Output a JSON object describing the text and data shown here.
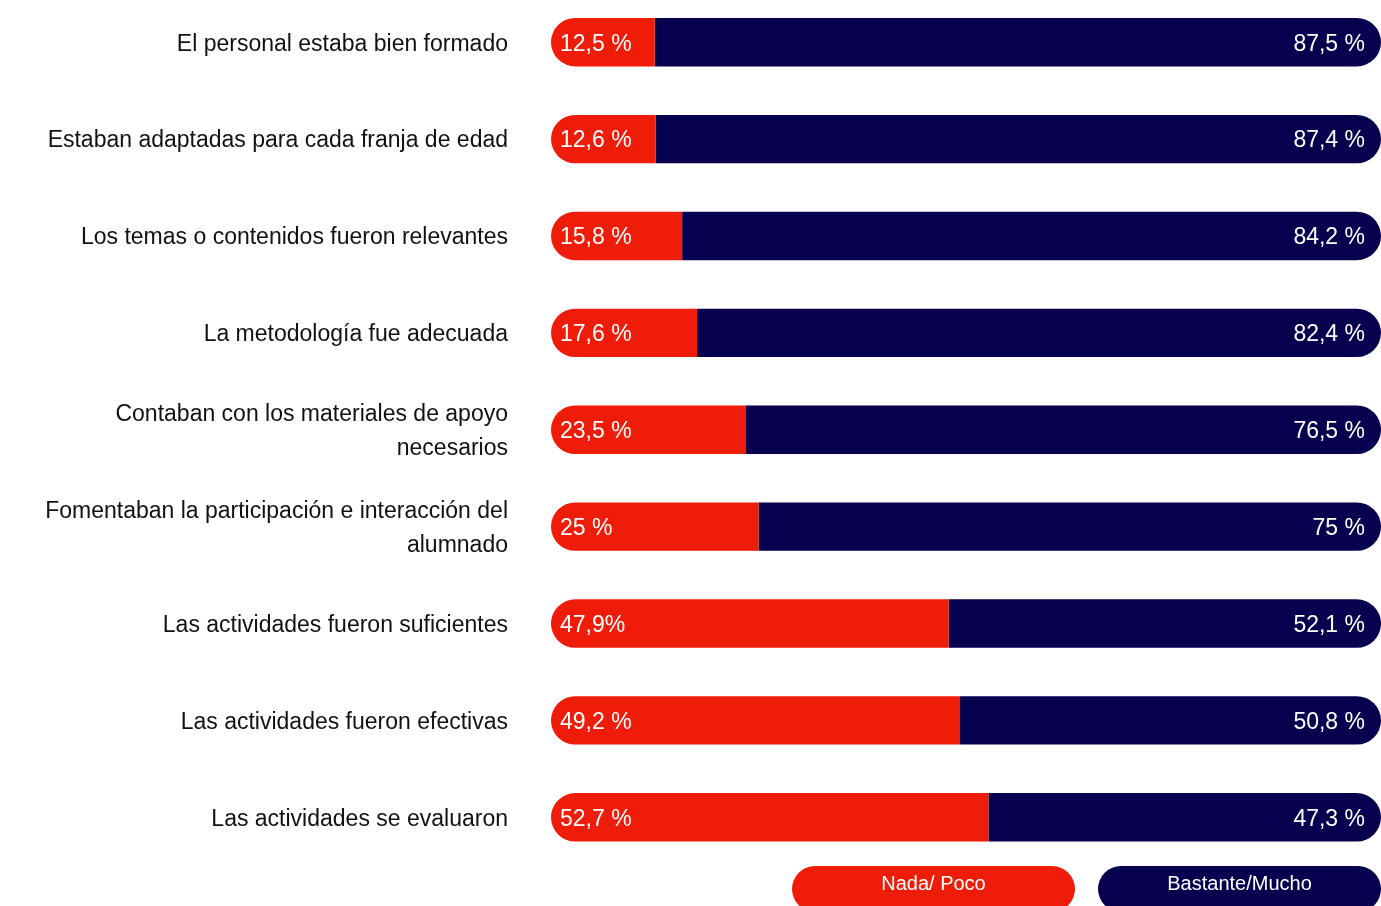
{
  "chart_data": {
    "type": "bar",
    "orientation": "horizontal",
    "stacked": true,
    "xlim": [
      0,
      100
    ],
    "tick_labels": false,
    "legend": "bottom",
    "categories": [
      "El personal estaba bien formado",
      "Estaban adaptadas para cada franja de edad",
      "Los temas o contenidos fueron relevantes",
      "La metodología fue adecuada",
      "Contaban con los materiales de apoyo necesarios",
      "Fomentaban la participación e interacción del alumnado",
      "Las actividades fueron suficientes",
      "Las actividades fueron efectivas",
      "Las actividades se evaluaron"
    ],
    "series": [
      {
        "name": "Nada/ Poco",
        "color": "#ee1c08",
        "values": [
          12.5,
          12.6,
          15.8,
          17.6,
          23.5,
          25,
          47.9,
          49.2,
          52.7
        ],
        "value_labels": [
          "12,5 %",
          "12,6 %",
          "15,8 %",
          "17,6 %",
          "23,5 %",
          "25 %",
          "47,9%",
          "49,2 %",
          "52,7 %"
        ]
      },
      {
        "name": "Bastante/Mucho",
        "color": "#07004f",
        "values": [
          87.5,
          87.4,
          84.2,
          82.4,
          76.5,
          75,
          52.1,
          50.8,
          47.3
        ],
        "value_labels": [
          "87,5 %",
          "87,4 %",
          "84,2 %",
          "82,4 %",
          "76,5 %",
          "75 %",
          "52,1 %",
          "50,8 %",
          "47,3 %"
        ]
      }
    ]
  }
}
